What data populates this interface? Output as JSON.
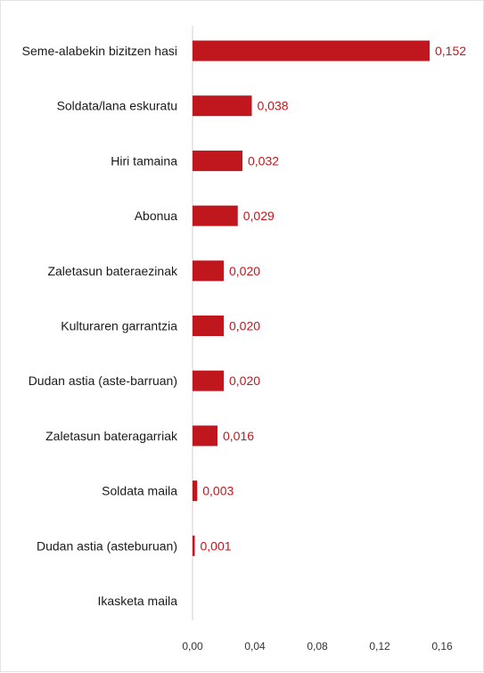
{
  "chart_data": {
    "type": "bar",
    "orientation": "horizontal",
    "categories": [
      "Seme-alabekin bizitzen hasi",
      "Soldata/lana eskuratu",
      "Hiri tamaina",
      "Abonua",
      "Zaletasun bateraezinak",
      "Kulturaren garrantzia",
      "Dudan astia (aste-barruan)",
      "Zaletasun bateragarriak",
      "Soldata maila",
      "Dudan astia (asteburuan)",
      "Ikasketa maila"
    ],
    "values": [
      0.152,
      0.038,
      0.032,
      0.029,
      0.02,
      0.02,
      0.02,
      0.016,
      0.003,
      0.001,
      0
    ],
    "value_labels": [
      "0,152",
      "0,038",
      "0,032",
      "0,029",
      "0,020",
      "0,020",
      "0,020",
      "0,016",
      "0,003",
      "0,001",
      ""
    ],
    "xlim": [
      0,
      0.16
    ],
    "x_ticks": [
      0,
      0.04,
      0.08,
      0.12,
      0.16
    ],
    "x_tick_labels": [
      "0,00",
      "0,04",
      "0,08",
      "0,12",
      "0,16"
    ],
    "grid": false,
    "colors": {
      "bar": "#c0171f",
      "value_label": "#c0171f",
      "text": "#1a1a1a"
    }
  }
}
